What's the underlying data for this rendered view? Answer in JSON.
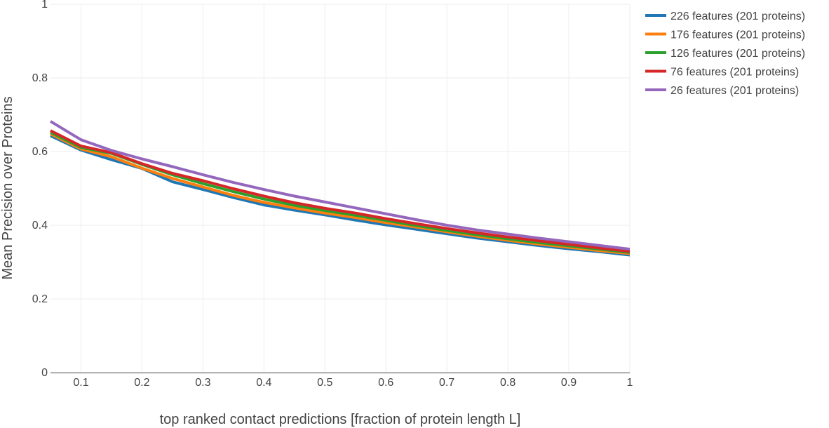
{
  "chart_data": {
    "type": "line",
    "title": "",
    "xlabel": "top ranked contact predictions [fraction of protein length L]",
    "ylabel": "Mean Precision over Proteins",
    "xlim": [
      0.05,
      1.0
    ],
    "ylim": [
      0,
      1
    ],
    "x_ticks": [
      0.1,
      0.2,
      0.3,
      0.4,
      0.5,
      0.6,
      0.7,
      0.8,
      0.9,
      1.0
    ],
    "x_tick_labels": [
      "0.1",
      "0.2",
      "0.3",
      "0.4",
      "0.5",
      "0.6",
      "0.7",
      "0.8",
      "0.9",
      "1"
    ],
    "y_ticks": [
      0,
      0.2,
      0.4,
      0.6,
      0.8,
      1
    ],
    "y_tick_labels": [
      "0",
      "0.2",
      "0.4",
      "0.6",
      "0.8",
      "1"
    ],
    "grid": true,
    "legend_position": "top-right",
    "x": [
      0.05,
      0.1,
      0.15,
      0.2,
      0.25,
      0.3,
      0.35,
      0.4,
      0.45,
      0.5,
      0.55,
      0.6,
      0.65,
      0.7,
      0.75,
      0.8,
      0.85,
      0.9,
      0.95,
      1.0
    ],
    "series": [
      {
        "name": "226 features (201 proteins)",
        "color": "#1f77b4",
        "values": [
          0.643,
          0.604,
          0.578,
          0.554,
          0.518,
          0.497,
          0.475,
          0.455,
          0.441,
          0.428,
          0.414,
          0.401,
          0.389,
          0.377,
          0.365,
          0.355,
          0.345,
          0.336,
          0.328,
          0.319
        ]
      },
      {
        "name": "176 features (201 proteins)",
        "color": "#ff7f0e",
        "values": [
          0.648,
          0.607,
          0.586,
          0.555,
          0.527,
          0.504,
          0.481,
          0.462,
          0.447,
          0.433,
          0.421,
          0.407,
          0.395,
          0.382,
          0.37,
          0.359,
          0.349,
          0.34,
          0.331,
          0.323
        ]
      },
      {
        "name": "126 features (201 proteins)",
        "color": "#2ca02c",
        "values": [
          0.652,
          0.611,
          0.595,
          0.565,
          0.537,
          0.513,
          0.491,
          0.471,
          0.454,
          0.44,
          0.427,
          0.413,
          0.399,
          0.386,
          0.374,
          0.363,
          0.353,
          0.344,
          0.335,
          0.326
        ]
      },
      {
        "name": "76 features (201 proteins)",
        "color": "#d62728",
        "values": [
          0.657,
          0.615,
          0.597,
          0.567,
          0.541,
          0.521,
          0.499,
          0.479,
          0.461,
          0.446,
          0.433,
          0.418,
          0.404,
          0.391,
          0.379,
          0.368,
          0.358,
          0.348,
          0.338,
          0.329
        ]
      },
      {
        "name": "26 features (201 proteins)",
        "color": "#9467bd",
        "values": [
          0.682,
          0.632,
          0.603,
          0.58,
          0.559,
          0.537,
          0.516,
          0.497,
          0.479,
          0.463,
          0.447,
          0.431,
          0.415,
          0.4,
          0.387,
          0.376,
          0.365,
          0.355,
          0.345,
          0.335
        ]
      }
    ]
  }
}
